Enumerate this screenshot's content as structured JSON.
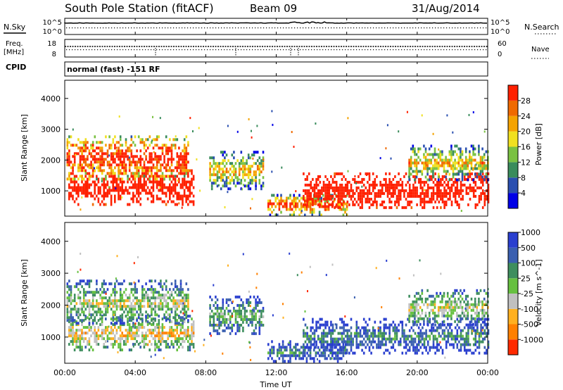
{
  "header": {
    "station": "South Pole Station (fitACF)",
    "beam": "Beam 09",
    "date": "31/Aug/2014"
  },
  "noise_panel": {
    "left_label": "N.Sky",
    "right_label": "N.Search",
    "left_ticks": [
      "10^5",
      "10^0"
    ],
    "right_ticks": [
      "10^5",
      "10^0"
    ]
  },
  "freq_panel": {
    "left_label_1": "Freq.",
    "left_label_2": "[MHz]",
    "left_ticks": [
      "18",
      "8"
    ],
    "right_label": "Nave",
    "right_ticks": [
      "60",
      "0"
    ]
  },
  "cpid": {
    "label": "CPID",
    "program": "normal (fast) -151 RF"
  },
  "colors": {
    "power": [
      "#0000e6",
      "#2a4fb0",
      "#3a8c5c",
      "#7ac142",
      "#f0e020",
      "#f5a300",
      "#f06a00",
      "#ff2000"
    ],
    "velocity": [
      "#2a3fcf",
      "#3a5fb0",
      "#3e8e5e",
      "#66c040",
      "#c0c0c0",
      "#ffb020",
      "#ff8000",
      "#ff2a00"
    ]
  },
  "chart_data": [
    {
      "type": "heatmap",
      "name": "power",
      "xlabel": "Time UT",
      "ylabel": "Slant Range [km]",
      "x_ticks": [
        "00:00",
        "04:00",
        "08:00",
        "12:00",
        "16:00",
        "20:00",
        "00:00"
      ],
      "xlim_hours": [
        0,
        24
      ],
      "y_ticks": [
        1000,
        2000,
        3000,
        4000
      ],
      "ylim_km": [
        180,
        4590
      ],
      "colorbar": {
        "label": "Power [dB]",
        "ticks": [
          4,
          8,
          12,
          16,
          20,
          24,
          28
        ]
      },
      "scatter_regions": [
        {
          "t0": 0.2,
          "t1": 7.3,
          "r0": 600,
          "r1": 1700,
          "core": 11,
          "spread": 1.8
        },
        {
          "t0": 0.1,
          "t1": 7.0,
          "r0": 1400,
          "r1": 2800,
          "core": 8,
          "spread": 2.5
        },
        {
          "t0": 8.2,
          "t1": 11.3,
          "r0": 1100,
          "r1": 2300,
          "core": 5,
          "spread": 2.2
        },
        {
          "t0": 11.5,
          "t1": 16.0,
          "r0": 250,
          "r1": 900,
          "core": 7,
          "spread": 2.5
        },
        {
          "t0": 13.5,
          "t1": 24.0,
          "r0": 500,
          "r1": 1600,
          "core": 11,
          "spread": 1.8
        },
        {
          "t0": 19.5,
          "t1": 24.0,
          "r0": 1400,
          "r1": 2500,
          "core": 5,
          "spread": 2.0
        }
      ]
    },
    {
      "type": "heatmap",
      "name": "velocity",
      "xlabel": "Time UT",
      "ylabel": "Slant Range [km]",
      "x_ticks": [
        "00:00",
        "04:00",
        "08:00",
        "12:00",
        "16:00",
        "20:00",
        "00:00"
      ],
      "xlim_hours": [
        0,
        24
      ],
      "y_ticks": [
        1000,
        2000,
        3000,
        4000
      ],
      "ylim_km": [
        180,
        4590
      ],
      "colorbar": {
        "label": "Velocity [m s^-1]",
        "ticks": [
          1000,
          500,
          100,
          25,
          -25,
          -100,
          -500,
          -1000
        ]
      },
      "scatter_regions": [
        {
          "t0": 0.2,
          "t1": 7.3,
          "r0": 600,
          "r1": 1700,
          "core": 5,
          "spread": 1.8
        },
        {
          "t0": 0.1,
          "t1": 7.0,
          "r0": 1400,
          "r1": 2800,
          "core": 4,
          "spread": 1.8
        },
        {
          "t0": 8.2,
          "t1": 11.3,
          "r0": 1100,
          "r1": 2300,
          "core": 3,
          "spread": 1.6
        },
        {
          "t0": 11.5,
          "t1": 16.0,
          "r0": 250,
          "r1": 900,
          "core": 2,
          "spread": 1.4
        },
        {
          "t0": 13.5,
          "t1": 24.0,
          "r0": 500,
          "r1": 1600,
          "core": 2,
          "spread": 1.6
        },
        {
          "t0": 19.5,
          "t1": 24.0,
          "r0": 1400,
          "r1": 2500,
          "core": 4,
          "spread": 1.6
        }
      ]
    }
  ]
}
